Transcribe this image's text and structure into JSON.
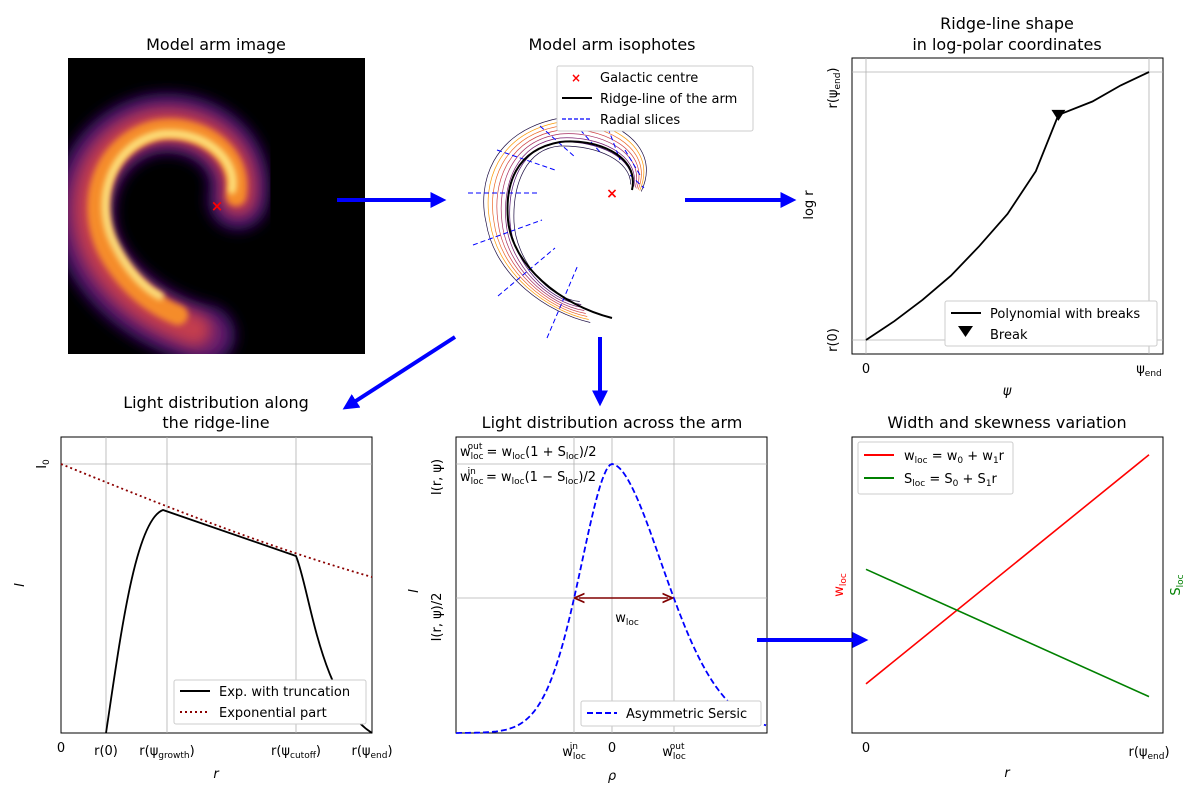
{
  "chart_data": [
    {
      "type": "image",
      "title": "Model arm image",
      "marker": {
        "label": "×",
        "color": "#ff0000"
      }
    },
    {
      "type": "diagram",
      "title": "Model arm isophotes",
      "legend": [
        "Galactic centre",
        "Ridge-line of the arm",
        "Radial slices"
      ],
      "colors": {
        "centre": "#ff0000",
        "ridge": "#000000",
        "slices": "#0000ff"
      }
    },
    {
      "type": "line",
      "title_lines": [
        "Ridge-line shape",
        "in log-polar coordinates"
      ],
      "xlabel": "ψ",
      "ylabel": "log r",
      "xticks": [
        "0",
        "ψ_end"
      ],
      "yticks": [
        "r(0)",
        "r(ψ_end)"
      ],
      "legend": [
        "Polynomial with breaks",
        "Break"
      ],
      "series": [
        {
          "name": "Polynomial with breaks",
          "x": [
            0,
            0.1,
            0.2,
            0.3,
            0.4,
            0.5,
            0.6,
            0.68,
            0.8,
            0.9,
            1.0
          ],
          "y": [
            0,
            0.07,
            0.15,
            0.24,
            0.35,
            0.47,
            0.63,
            0.84,
            0.89,
            0.95,
            1.0
          ]
        }
      ],
      "break": {
        "x": 0.68,
        "y": 0.84
      }
    },
    {
      "type": "line",
      "title_lines": [
        "Light distribution along",
        "the ridge-line"
      ],
      "xlabel": "r",
      "ylabel": "I",
      "xticks": [
        "0",
        "r(0)",
        "r(ψ_growth)",
        "r(ψ_cutoff)",
        "r(ψ_end)"
      ],
      "yticks": [
        "I_0"
      ],
      "legend": [
        "Exp. with truncation",
        "Exponential part"
      ]
    },
    {
      "type": "line",
      "title": "Light distribution across the arm",
      "xlabel": "ρ",
      "ylabel": "I",
      "xticks": [
        "w_loc^in",
        "0",
        "w_loc^out"
      ],
      "yticks": [
        "I(r, ψ)",
        "I(r, ψ)/2"
      ],
      "annotation": "w_loc",
      "formula_out": "w_loc^out = w_loc(1 + S_loc)/2",
      "formula_in": "w_loc^in = w_loc(1 − S_loc)/2",
      "legend": [
        "Asymmetric Sersic"
      ]
    },
    {
      "type": "line",
      "title": "Width and skewness variation",
      "xlabel": "r",
      "ylabel_left": "w_loc",
      "ylabel_right": "S_loc",
      "xticks": [
        "0",
        "r(ψ_end)"
      ],
      "legend": [
        "w_loc = w_0 + w_1 r",
        "S_loc = S_0 + S_1 r"
      ],
      "series": [
        {
          "name": "w_loc = w_0 + w_1 r",
          "x": [
            0,
            1
          ],
          "y": [
            0.1,
            1.0
          ]
        },
        {
          "name": "S_loc = S_0 + S_1 r",
          "x": [
            0,
            1
          ],
          "y": [
            0.55,
            0.05
          ]
        }
      ]
    }
  ]
}
